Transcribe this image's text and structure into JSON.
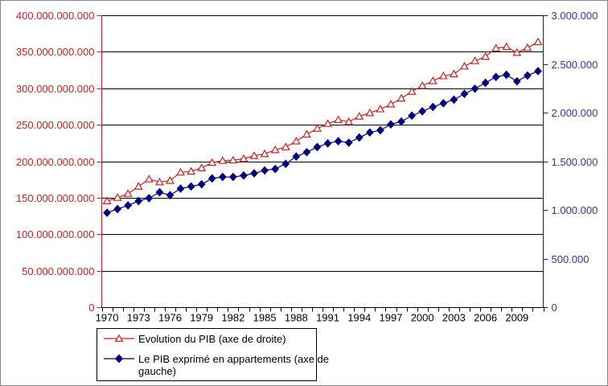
{
  "chart_data": {
    "type": "line",
    "title": "",
    "x": [
      1970,
      1971,
      1972,
      1973,
      1974,
      1975,
      1976,
      1977,
      1978,
      1979,
      1980,
      1981,
      1982,
      1983,
      1984,
      1985,
      1986,
      1987,
      1988,
      1989,
      1990,
      1991,
      1992,
      1993,
      1994,
      1995,
      1996,
      1997,
      1998,
      1999,
      2000,
      2001,
      2002,
      2003,
      2004,
      2005,
      2006,
      2007,
      2008,
      2009,
      2010,
      2011
    ],
    "x_tick_labels": [
      "1970",
      "1973",
      "1976",
      "1979",
      "1982",
      "1985",
      "1988",
      "1991",
      "1994",
      "1997",
      "2000",
      "2003",
      "2006",
      "2009"
    ],
    "grid": true,
    "legend_position": "bottom-left",
    "left_axis": {
      "min": 0,
      "max": 400000000000,
      "tick_labels": [
        "400.000.000.000",
        "350.000.000.000",
        "300.000.000.000",
        "250.000.000.000",
        "200.000.000.000",
        "150.000.000.000",
        "100.000.000.000",
        "50.000.000.000",
        "0"
      ],
      "color": "#cc2020"
    },
    "right_axis": {
      "min": 0,
      "max": 3000000,
      "tick_labels": [
        "3.000.000",
        "2.500.000",
        "2.000.000",
        "1.500.000",
        "1.000.000",
        "500.000",
        "0"
      ],
      "color": "#3333a0"
    },
    "series": [
      {
        "name": "Evolution du PIB (axe de droite)",
        "axis": "right",
        "color": "#cc2020",
        "marker": "open-triangle",
        "values": [
          1095000,
          1130000,
          1170000,
          1245000,
          1320000,
          1290000,
          1305000,
          1390000,
          1400000,
          1435000,
          1490000,
          1510000,
          1515000,
          1530000,
          1560000,
          1580000,
          1620000,
          1650000,
          1710000,
          1780000,
          1840000,
          1890000,
          1930000,
          1910000,
          1965000,
          2000000,
          2040000,
          2090000,
          2150000,
          2220000,
          2280000,
          2330000,
          2380000,
          2400000,
          2480000,
          2535000,
          2580000,
          2665000,
          2680000,
          2620000,
          2670000,
          2730000
        ]
      },
      {
        "name": "Le PIB exprimé en appartements (axe de gauche)",
        "axis": "left",
        "color": "#000080",
        "marker": "filled-diamond",
        "values": [
          130000000000,
          135000000000,
          140000000000,
          146000000000,
          150000000000,
          158000000000,
          154000000000,
          163000000000,
          166000000000,
          169000000000,
          177000000000,
          179000000000,
          179000000000,
          181000000000,
          184000000000,
          188000000000,
          190000000000,
          197000000000,
          207000000000,
          213000000000,
          220000000000,
          225000000000,
          228000000000,
          226000000000,
          233000000000,
          240000000000,
          243000000000,
          251000000000,
          255000000000,
          263000000000,
          269000000000,
          275000000000,
          280000000000,
          285000000000,
          293000000000,
          300000000000,
          308000000000,
          316000000000,
          319000000000,
          310000000000,
          318000000000,
          324000000000
        ]
      }
    ]
  },
  "legend": {
    "entries": [
      {
        "label": "Evolution du PIB (axe de droite)",
        "label_lines": [
          "Evolution du PIB (axe de droite)"
        ]
      },
      {
        "label": "Le PIB exprimé en appartements (axe de gauche)",
        "label_lines": [
          "Le PIB exprimé en appartements (axe de",
          "gauche)"
        ]
      }
    ]
  }
}
